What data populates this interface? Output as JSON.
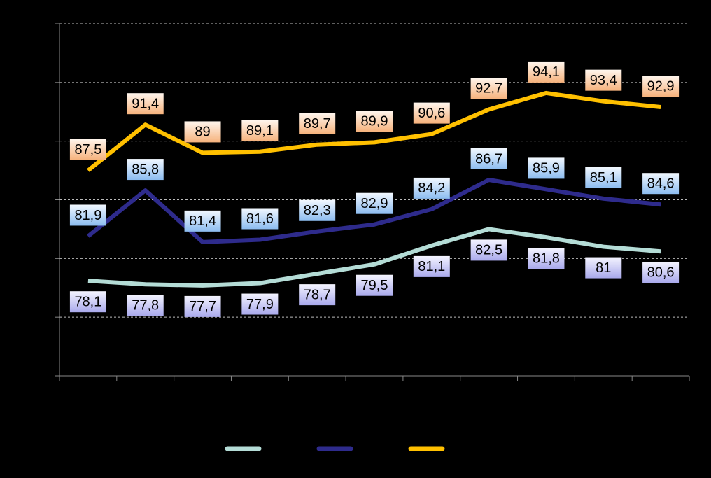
{
  "chart_data": {
    "type": "line",
    "categories": [
      null,
      null,
      null,
      null,
      null,
      null,
      null,
      null,
      null,
      null,
      null
    ],
    "series": [
      {
        "color": "#b4dcd6",
        "values": [
          78.1,
          77.8,
          77.7,
          77.9,
          78.7,
          79.5,
          81.1,
          82.5,
          81.8,
          81,
          80.6
        ],
        "value_labels": [
          "78,1",
          "77,8",
          "77,7",
          "77,9",
          "78,7",
          "79,5",
          "81,1",
          "82,5",
          "81,8",
          "81",
          "80,6"
        ]
      },
      {
        "color": "#2e2b8c",
        "values": [
          81.9,
          85.8,
          81.4,
          81.6,
          82.3,
          82.9,
          84.2,
          86.7,
          85.9,
          85.1,
          84.6
        ],
        "value_labels": [
          "81,9",
          "85,8",
          "81,4",
          "81,6",
          "82,3",
          "82,9",
          "84,2",
          "86,7",
          "85,9",
          "85,1",
          "84,6"
        ]
      },
      {
        "color": "#ffc000",
        "values": [
          87.5,
          91.4,
          89,
          89.1,
          89.7,
          89.9,
          90.6,
          92.7,
          94.1,
          93.4,
          92.9
        ],
        "value_labels": [
          "87,5",
          "91,4",
          "89",
          "89,1",
          "89,7",
          "89,9",
          "90,6",
          "92,7",
          "94,1",
          "93,4",
          "92,9"
        ]
      }
    ],
    "ylim": [
      70,
      100
    ],
    "yticks": [
      70,
      75,
      80,
      85,
      90,
      95,
      100
    ],
    "grid": true
  }
}
